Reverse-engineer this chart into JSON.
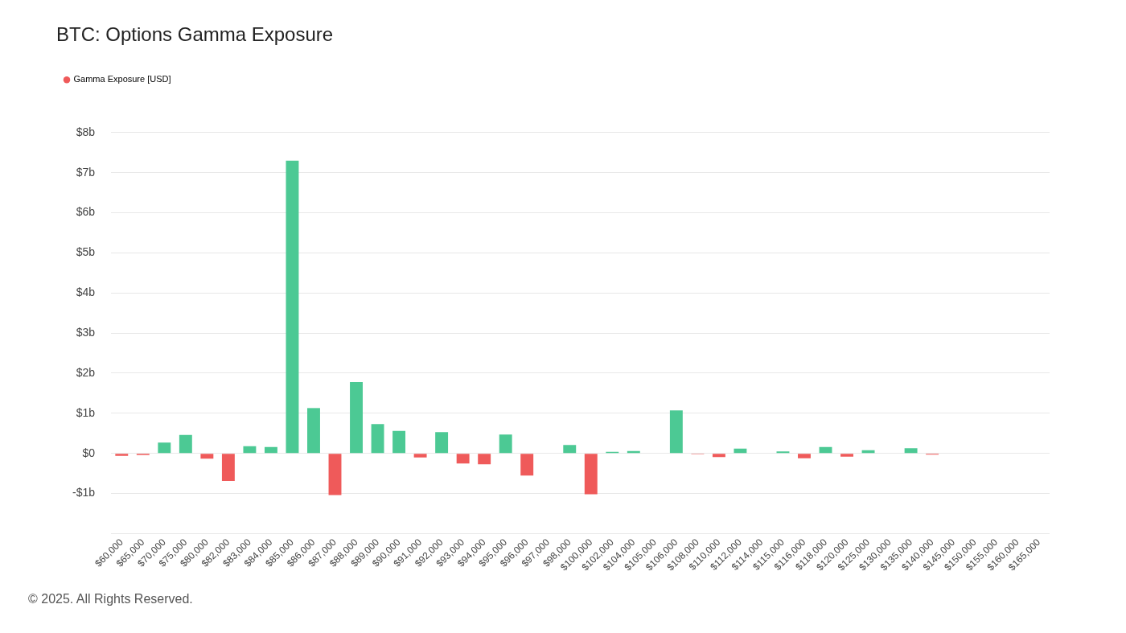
{
  "chart_data": {
    "type": "bar",
    "title": "BTC: Options Gamma Exposure",
    "categories": [
      "$60,000",
      "$65,000",
      "$70,000",
      "$75,000",
      "$80,000",
      "$82,000",
      "$83,000",
      "$84,000",
      "$85,000",
      "$86,000",
      "$87,000",
      "$88,000",
      "$89,000",
      "$90,000",
      "$91,000",
      "$92,000",
      "$93,000",
      "$94,000",
      "$95,000",
      "$96,000",
      "$97,000",
      "$98,000",
      "$100,000",
      "$102,000",
      "$104,000",
      "$105,000",
      "$106,000",
      "$108,000",
      "$110,000",
      "$112,000",
      "$114,000",
      "$115,000",
      "$116,000",
      "$118,000",
      "$120,000",
      "$125,000",
      "$130,000",
      "$135,000",
      "$140,000",
      "$145,000",
      "$150,000",
      "$155,000",
      "$160,000",
      "$165,000"
    ],
    "series": [
      {
        "name": "Gamma Exposure [USD]",
        "color": "#ef5a5a",
        "values": [
          -0.06,
          -0.04,
          0.27,
          0.46,
          -0.13,
          -0.69,
          0.18,
          0.16,
          7.3,
          1.13,
          -1.04,
          1.78,
          0.73,
          0.56,
          -0.1,
          0.53,
          -0.25,
          -0.27,
          0.47,
          -0.55,
          -0.01,
          0.21,
          -1.02,
          0.04,
          0.06,
          -0.01,
          1.07,
          -0.02,
          -0.09,
          0.12,
          -0.01,
          0.05,
          -0.12,
          0.16,
          -0.08,
          0.08,
          0,
          0.13,
          -0.03,
          0,
          0.01,
          0.01,
          0,
          0
        ],
        "colors": [
          "#ef5a5a",
          "#ef5a5a",
          "#4cc994",
          "#4cc994",
          "#ef5a5a",
          "#ef5a5a",
          "#4cc994",
          "#4cc994",
          "#4cc994",
          "#4cc994",
          "#ef5a5a",
          "#4cc994",
          "#4cc994",
          "#4cc994",
          "#ef5a5a",
          "#4cc994",
          "#ef5a5a",
          "#ef5a5a",
          "#4cc994",
          "#ef5a5a",
          "#ef5a5a",
          "#4cc994",
          "#ef5a5a",
          "#4cc994",
          "#4cc994",
          "#ef5a5a",
          "#4cc994",
          "#ef5a5a",
          "#ef5a5a",
          "#4cc994",
          "#ef5a5a",
          "#4cc994",
          "#ef5a5a",
          "#4cc994",
          "#ef5a5a",
          "#4cc994",
          "#4cc994",
          "#4cc994",
          "#ef5a5a",
          "#4cc994",
          "#4cc994",
          "#4cc994",
          "#4cc994",
          "#4cc994"
        ]
      }
    ],
    "ylim": [
      -2,
      8
    ],
    "yticks": [
      {
        "value": -2,
        "label": null
      },
      {
        "value": -1,
        "label": "-$1b"
      },
      {
        "value": 0,
        "label": "$0"
      },
      {
        "value": 1,
        "label": "$1b"
      },
      {
        "value": 2,
        "label": "$2b"
      },
      {
        "value": 3,
        "label": "$3b"
      },
      {
        "value": 4,
        "label": "$4b"
      },
      {
        "value": 5,
        "label": "$5b"
      },
      {
        "value": 6,
        "label": "$6b"
      },
      {
        "value": 7,
        "label": "$7b"
      },
      {
        "value": 8,
        "label": "$8b"
      }
    ],
    "grid": "y",
    "legend": "top left",
    "annotations": [
      "© 2025. All Rights Reserved."
    ]
  }
}
